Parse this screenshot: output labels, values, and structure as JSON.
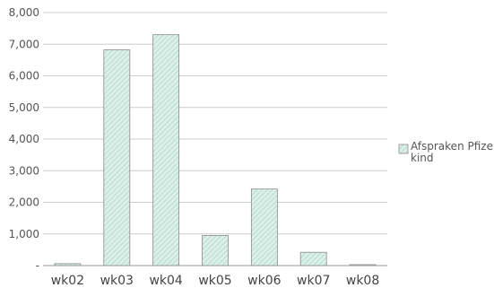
{
  "chart_data": {
    "type": "bar",
    "categories": [
      "wk02",
      "wk03",
      "wk04",
      "wk05",
      "wk06",
      "wk07",
      "wk08"
    ],
    "series": [
      {
        "name": "Afspraken Pfizer kind",
        "values": [
          60,
          6820,
          7300,
          950,
          2420,
          420,
          30
        ]
      }
    ],
    "ylim": [
      0,
      8000
    ],
    "yticks": [
      0,
      1000,
      2000,
      3000,
      4000,
      5000,
      6000,
      7000,
      8000
    ],
    "ytick_labels": [
      "-",
      "1,000",
      "2,000",
      "3,000",
      "4,000",
      "5,000",
      "6,000",
      "7,000",
      "8,000"
    ],
    "grid": true,
    "legend_position": "right",
    "legend_lines": [
      "Afspraken Pfizer",
      "kind"
    ],
    "colors": {
      "bar_fill": "#dcefe9",
      "bar_hatch": "#9fcfc2",
      "bar_stroke": "#8a8a8a",
      "grid": "#cccccc",
      "axis": "#999999"
    }
  }
}
